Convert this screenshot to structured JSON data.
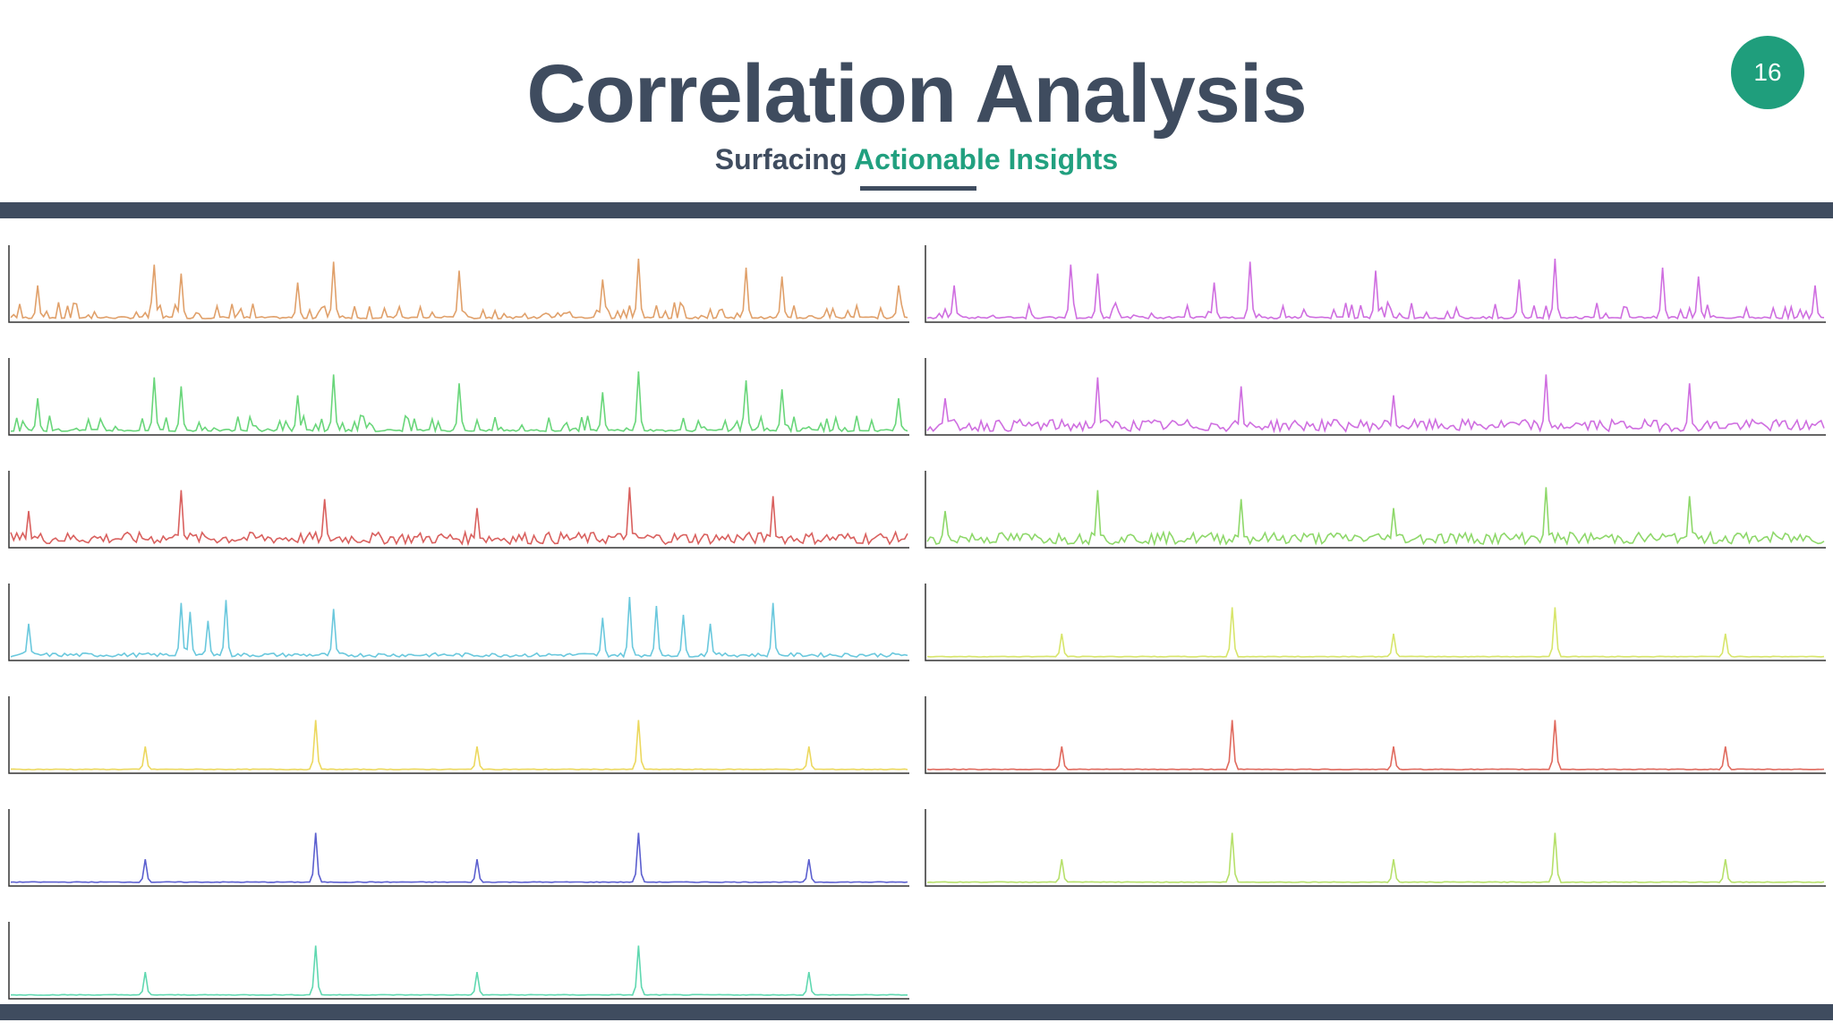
{
  "slide": {
    "title": "Correlation Analysis",
    "subtitle_part1": "Surfacing",
    "subtitle_part2": "Actionable Insights",
    "page_number": "16",
    "colors": {
      "dark": "#3f4c5f",
      "accent": "#21a07f"
    }
  },
  "chart_data": [
    {
      "type": "line",
      "color": "#e0a06a",
      "pattern": "spiky",
      "peaks": [
        0.03,
        0.16,
        0.19,
        0.32,
        0.36,
        0.5,
        0.66,
        0.7,
        0.82,
        0.86,
        0.99
      ]
    },
    {
      "type": "line",
      "color": "#69d67a",
      "pattern": "spiky",
      "peaks": [
        0.03,
        0.16,
        0.19,
        0.32,
        0.36,
        0.5,
        0.66,
        0.7,
        0.82,
        0.86,
        0.99
      ]
    },
    {
      "type": "line",
      "color": "#d9605e",
      "pattern": "noisy",
      "peaks": [
        0.02,
        0.19,
        0.35,
        0.52,
        0.69,
        0.85
      ]
    },
    {
      "type": "line",
      "color": "#6ac8dd",
      "pattern": "mixed",
      "peaks": [
        0.02,
        0.19,
        0.2,
        0.22,
        0.24,
        0.36,
        0.66,
        0.69,
        0.72,
        0.75,
        0.78,
        0.85
      ]
    },
    {
      "type": "line",
      "color": "#ecd85e",
      "pattern": "sparse",
      "peaks": [
        0.15,
        0.34,
        0.52,
        0.7,
        0.89
      ]
    },
    {
      "type": "line",
      "color": "#5b5fcf",
      "pattern": "sparse",
      "peaks": [
        0.15,
        0.34,
        0.52,
        0.7,
        0.89
      ]
    },
    {
      "type": "line",
      "color": "#5fd8b0",
      "pattern": "sparse",
      "peaks": [
        0.15,
        0.34,
        0.52,
        0.7,
        0.89
      ]
    },
    {
      "type": "line",
      "color": "#cf6ee0",
      "pattern": "spiky",
      "peaks": [
        0.03,
        0.16,
        0.19,
        0.32,
        0.36,
        0.5,
        0.66,
        0.7,
        0.82,
        0.86,
        0.99
      ]
    },
    {
      "type": "line",
      "color": "#cf6ee0",
      "pattern": "noisy",
      "peaks": [
        0.02,
        0.19,
        0.35,
        0.52,
        0.69,
        0.85
      ]
    },
    {
      "type": "line",
      "color": "#8ed86a",
      "pattern": "noisy",
      "peaks": [
        0.02,
        0.19,
        0.35,
        0.52,
        0.69,
        0.85
      ]
    },
    {
      "type": "line",
      "color": "#d7e56a",
      "pattern": "sparse",
      "peaks": [
        0.15,
        0.34,
        0.52,
        0.7,
        0.89
      ]
    },
    {
      "type": "line",
      "color": "#e06a5e",
      "pattern": "sparse",
      "peaks": [
        0.15,
        0.34,
        0.52,
        0.7,
        0.89
      ]
    },
    {
      "type": "line",
      "color": "#b6e06a",
      "pattern": "sparse",
      "peaks": [
        0.15,
        0.34,
        0.52,
        0.7,
        0.89
      ]
    }
  ]
}
